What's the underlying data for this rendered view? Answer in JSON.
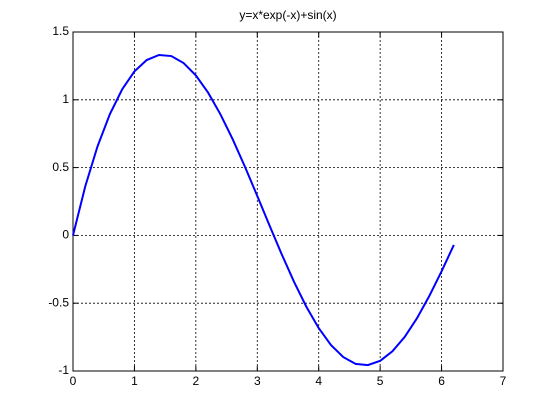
{
  "chart_data": {
    "type": "line",
    "title": "y=x*exp(-x)+sin(x)",
    "x": [
      0,
      0.2,
      0.4,
      0.6,
      0.8,
      1.0,
      1.2,
      1.4,
      1.6,
      1.8,
      2.0,
      2.2,
      2.4,
      2.6,
      2.8,
      3.0,
      3.2,
      3.4,
      3.6,
      3.8,
      4.0,
      4.2,
      4.4,
      4.6,
      4.8,
      5.0,
      5.2,
      5.4,
      5.6,
      5.8,
      6.0,
      6.2
    ],
    "series": [
      {
        "color": "#0000ff",
        "values": [
          0,
          0.3624,
          0.6575,
          0.8939,
          1.0769,
          1.2094,
          1.2934,
          1.3306,
          1.3226,
          1.2713,
          1.18,
          1.0523,
          0.8932,
          0.7086,
          0.5053,
          0.2905,
          0.072,
          -0.142,
          -0.3441,
          -0.5269,
          -0.6835,
          -0.8086,
          -0.8976,
          -0.9475,
          -0.9567,
          -0.9252,
          -0.8548,
          -0.7484,
          -0.6106,
          -0.447,
          -0.2645,
          -0.0705
        ]
      }
    ],
    "xlim": [
      0,
      7
    ],
    "xticks": [
      0,
      1,
      2,
      3,
      4,
      5,
      6,
      7
    ],
    "ylim": [
      -1,
      1.5
    ],
    "yticks": [
      -1,
      -0.5,
      0,
      0.5,
      1,
      1.5
    ],
    "grid": true
  }
}
